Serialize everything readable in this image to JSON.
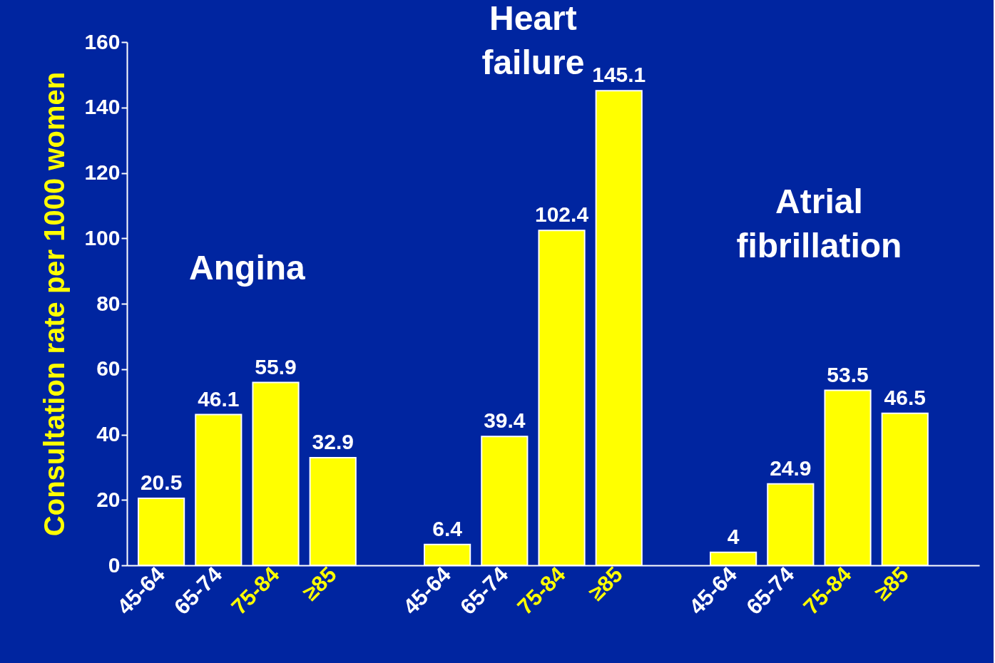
{
  "chart_data": {
    "type": "bar",
    "categories": [
      "45-64",
      "65-74",
      "75-84",
      "≥85",
      "45-64",
      "65-74",
      "75-84",
      "≥85",
      "45-64",
      "65-74",
      "75-84",
      "≥85"
    ],
    "values": [
      20.5,
      46.1,
      55.9,
      32.9,
      6.4,
      39.4,
      102.4,
      145.1,
      4,
      24.9,
      53.5,
      46.5
    ],
    "color": "#ffff00",
    "data_labels": true,
    "ylabel": "Consultation rate per 1000 women",
    "ylim": [
      0,
      160
    ],
    "yticks": [
      0,
      20,
      40,
      60,
      80,
      100,
      120,
      140,
      160
    ],
    "grid": false,
    "annotations": [
      "Angina",
      "Heart failure",
      "Atrial fibrillation"
    ]
  }
}
